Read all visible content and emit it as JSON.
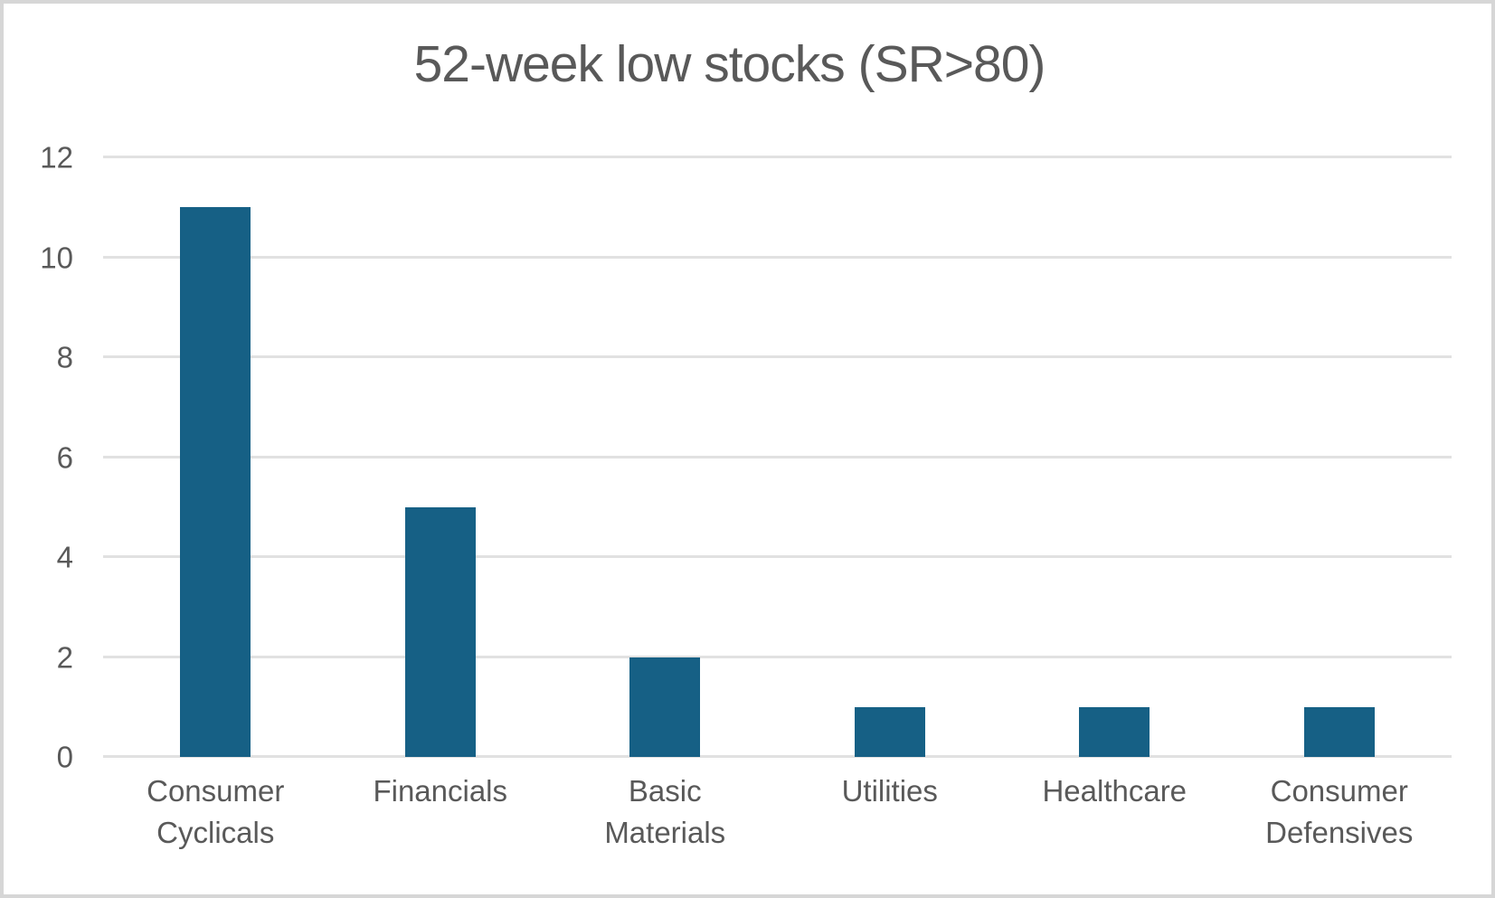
{
  "chart_data": {
    "type": "bar",
    "title": "52-week low stocks (SR>80)",
    "categories": [
      "Consumer Cyclicals",
      "Financials",
      "Basic Materials",
      "Utilities",
      "Healthcare",
      "Consumer Defensives"
    ],
    "values": [
      11,
      5,
      2,
      1,
      1,
      1
    ],
    "xlabel": "",
    "ylabel": "",
    "ylim": [
      0,
      12
    ],
    "yticks": [
      0,
      2,
      4,
      6,
      8,
      10,
      12
    ],
    "grid": "horizontal",
    "legend": "none"
  },
  "colors": {
    "bar": "#166085",
    "gridline": "#e1e1e1",
    "text": "#595959",
    "frame_border": "#d6d6d6",
    "background": "#ffffff"
  }
}
